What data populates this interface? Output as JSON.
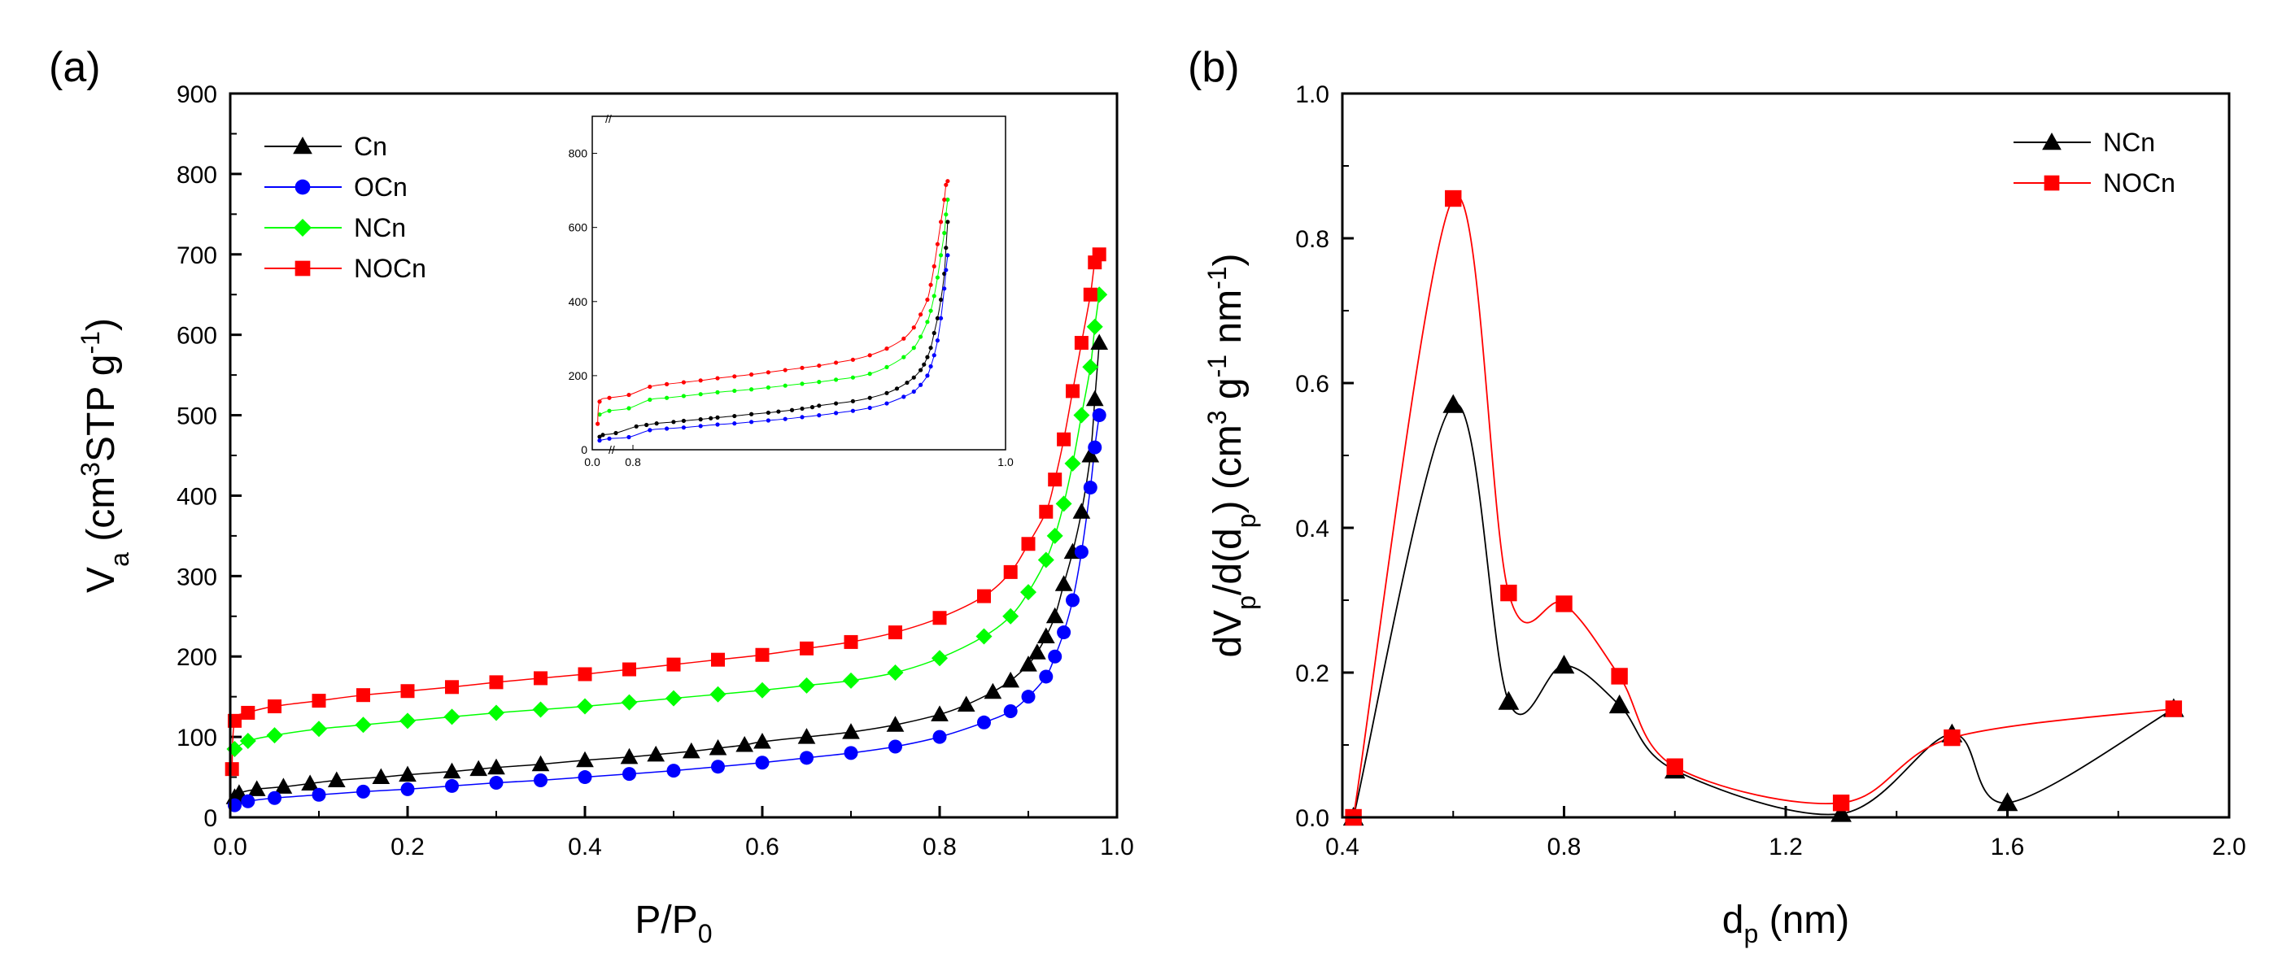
{
  "chart_data": [
    {
      "type": "scatter",
      "panel_label": "(a)",
      "title": "",
      "xlabel": "P/P",
      "xlabel_sub": "0",
      "ylabel_parts": [
        "V",
        "a",
        " (cm",
        "3",
        "STP g",
        "-1",
        ")"
      ],
      "xlim": [
        0.0,
        1.0
      ],
      "ylim": [
        0,
        900
      ],
      "xticks": [
        "0.0",
        "0.2",
        "0.4",
        "0.6",
        "0.8",
        "1.0"
      ],
      "yticks": [
        "0",
        "100",
        "200",
        "300",
        "400",
        "500",
        "600",
        "700",
        "800",
        "900"
      ],
      "legend_position": "top-left",
      "series": [
        {
          "name": "Cn",
          "marker": "triangle",
          "color": "#000000",
          "x": [
            0.005,
            0.01,
            0.03,
            0.06,
            0.09,
            0.12,
            0.17,
            0.2,
            0.25,
            0.28,
            0.3,
            0.35,
            0.4,
            0.45,
            0.48,
            0.52,
            0.55,
            0.58,
            0.6,
            0.65,
            0.7,
            0.75,
            0.8,
            0.83,
            0.86,
            0.88,
            0.9,
            0.91,
            0.92,
            0.93,
            0.94,
            0.95,
            0.96,
            0.97,
            0.975,
            0.98
          ],
          "y": [
            25,
            30,
            35,
            38,
            42,
            46,
            50,
            53,
            57,
            60,
            62,
            66,
            71,
            75,
            78,
            82,
            86,
            90,
            94,
            100,
            106,
            115,
            128,
            140,
            156,
            170,
            190,
            205,
            225,
            250,
            290,
            330,
            380,
            450,
            520,
            590
          ]
        },
        {
          "name": "OCn",
          "marker": "circle",
          "color": "#0000ff",
          "x": [
            0.005,
            0.02,
            0.05,
            0.1,
            0.15,
            0.2,
            0.25,
            0.3,
            0.35,
            0.4,
            0.45,
            0.5,
            0.55,
            0.6,
            0.65,
            0.7,
            0.75,
            0.8,
            0.85,
            0.88,
            0.9,
            0.92,
            0.93,
            0.94,
            0.95,
            0.96,
            0.97,
            0.975,
            0.98
          ],
          "y": [
            15,
            20,
            24,
            28,
            32,
            35,
            39,
            43,
            46,
            50,
            54,
            58,
            63,
            68,
            74,
            80,
            88,
            100,
            118,
            132,
            150,
            175,
            200,
            230,
            270,
            330,
            410,
            460,
            500
          ]
        },
        {
          "name": "NCn",
          "marker": "diamond",
          "color": "#00ff00",
          "x": [
            0.005,
            0.02,
            0.05,
            0.1,
            0.15,
            0.2,
            0.25,
            0.3,
            0.35,
            0.4,
            0.45,
            0.5,
            0.55,
            0.6,
            0.65,
            0.7,
            0.75,
            0.8,
            0.85,
            0.88,
            0.9,
            0.92,
            0.93,
            0.94,
            0.95,
            0.96,
            0.97,
            0.975,
            0.98
          ],
          "y": [
            85,
            95,
            102,
            110,
            115,
            120,
            125,
            130,
            134,
            138,
            143,
            148,
            153,
            158,
            164,
            170,
            180,
            198,
            225,
            250,
            280,
            320,
            350,
            390,
            440,
            500,
            560,
            610,
            650
          ]
        },
        {
          "name": "NOCn",
          "marker": "square",
          "color": "#ff0000",
          "x": [
            0.002,
            0.005,
            0.02,
            0.05,
            0.1,
            0.15,
            0.2,
            0.25,
            0.3,
            0.35,
            0.4,
            0.45,
            0.5,
            0.55,
            0.6,
            0.65,
            0.7,
            0.75,
            0.8,
            0.85,
            0.88,
            0.9,
            0.92,
            0.93,
            0.94,
            0.95,
            0.96,
            0.97,
            0.975,
            0.98
          ],
          "y": [
            60,
            120,
            130,
            138,
            145,
            152,
            157,
            162,
            168,
            173,
            178,
            184,
            190,
            196,
            202,
            210,
            218,
            230,
            248,
            275,
            305,
            340,
            380,
            420,
            470,
            530,
            590,
            650,
            690,
            700
          ]
        }
      ],
      "inset": {
        "xtick_labels": [
          "0.0",
          "0.8",
          "1.0"
        ],
        "ytick_labels": [
          "0",
          "200",
          "400",
          "600",
          "800"
        ],
        "break_mark": "//"
      }
    },
    {
      "type": "line",
      "panel_label": "(b)",
      "title": "",
      "xlabel": "d",
      "xlabel_sub": "p",
      "xlabel_suffix": " (nm)",
      "ylabel_parts": [
        "dV",
        "p",
        "/d(d",
        "p",
        ") (cm",
        "3",
        " g",
        "-1",
        " nm",
        "-1",
        ")"
      ],
      "xlim": [
        0.4,
        2.0
      ],
      "ylim": [
        0.0,
        1.0
      ],
      "xticks": [
        "0.4",
        "0.8",
        "1.2",
        "1.6",
        "2.0"
      ],
      "yticks": [
        "0.0",
        "0.2",
        "0.4",
        "0.6",
        "0.8",
        "1.0"
      ],
      "legend_position": "top-right",
      "series": [
        {
          "name": "NCn",
          "marker": "triangle",
          "color": "#000000",
          "x": [
            0.42,
            0.6,
            0.7,
            0.8,
            0.9,
            1.0,
            1.3,
            1.5,
            1.6,
            1.9
          ],
          "y": [
            0.0,
            0.57,
            0.16,
            0.21,
            0.155,
            0.065,
            0.005,
            0.115,
            0.02,
            0.15
          ]
        },
        {
          "name": "NOCn",
          "marker": "square",
          "color": "#ff0000",
          "x": [
            0.42,
            0.6,
            0.7,
            0.8,
            0.9,
            1.0,
            1.3,
            1.5,
            1.9
          ],
          "y": [
            0.0,
            0.855,
            0.31,
            0.295,
            0.195,
            0.07,
            0.02,
            0.11,
            0.15
          ]
        }
      ]
    }
  ]
}
